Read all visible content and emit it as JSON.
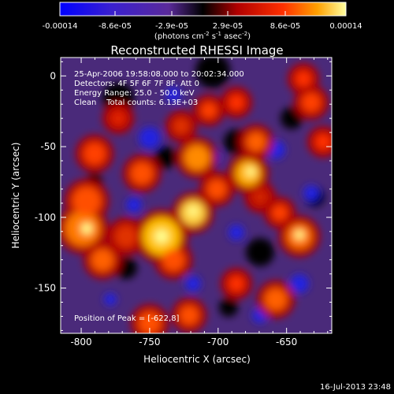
{
  "chart_data": {
    "type": "heatmap",
    "title": "Reconstructed RHESSI Image",
    "xlabel": "Heliocentric X (arcsec)",
    "ylabel": "Heliocentric Y (arcsec)",
    "xlim": [
      -815,
      -617
    ],
    "ylim": [
      -182,
      13
    ],
    "x_ticks": [
      -800,
      -750,
      -700,
      -650
    ],
    "y_ticks": [
      0,
      -50,
      -100,
      -150
    ],
    "colorbar": {
      "ticks": [
        "-0.00014",
        "-8.6e-05",
        "-2.9e-05",
        "2.9e-05",
        "8.6e-05",
        "0.00014"
      ],
      "units_prefix": "(photons cm",
      "units_sup1": "-2",
      "units_mid": " s",
      "units_sup2": "-1",
      "units_mid2": " asec",
      "units_sup3": "-2",
      "units_suffix": ")",
      "range": [
        -0.00014,
        0.00014
      ],
      "colors": [
        "#0000ff",
        "#4020c0",
        "#5a2a9a",
        "#000000",
        "#b00000",
        "#ff3000",
        "#ffa000",
        "#ffff80"
      ]
    },
    "annotations": [
      "25-Apr-2006 19:58:08.000 to 20:02:34.000",
      "Detectors: 4F 5F 6F 7F 8F, Att 0",
      "Energy Range: 25.0 - 50.0 keV",
      "Clean    Total counts: 6.13E+03"
    ],
    "peak_label": "Position of Peak = [-622,8]",
    "grid": false
  },
  "footer": {
    "timestamp": "16-Jul-2013 23:48"
  }
}
